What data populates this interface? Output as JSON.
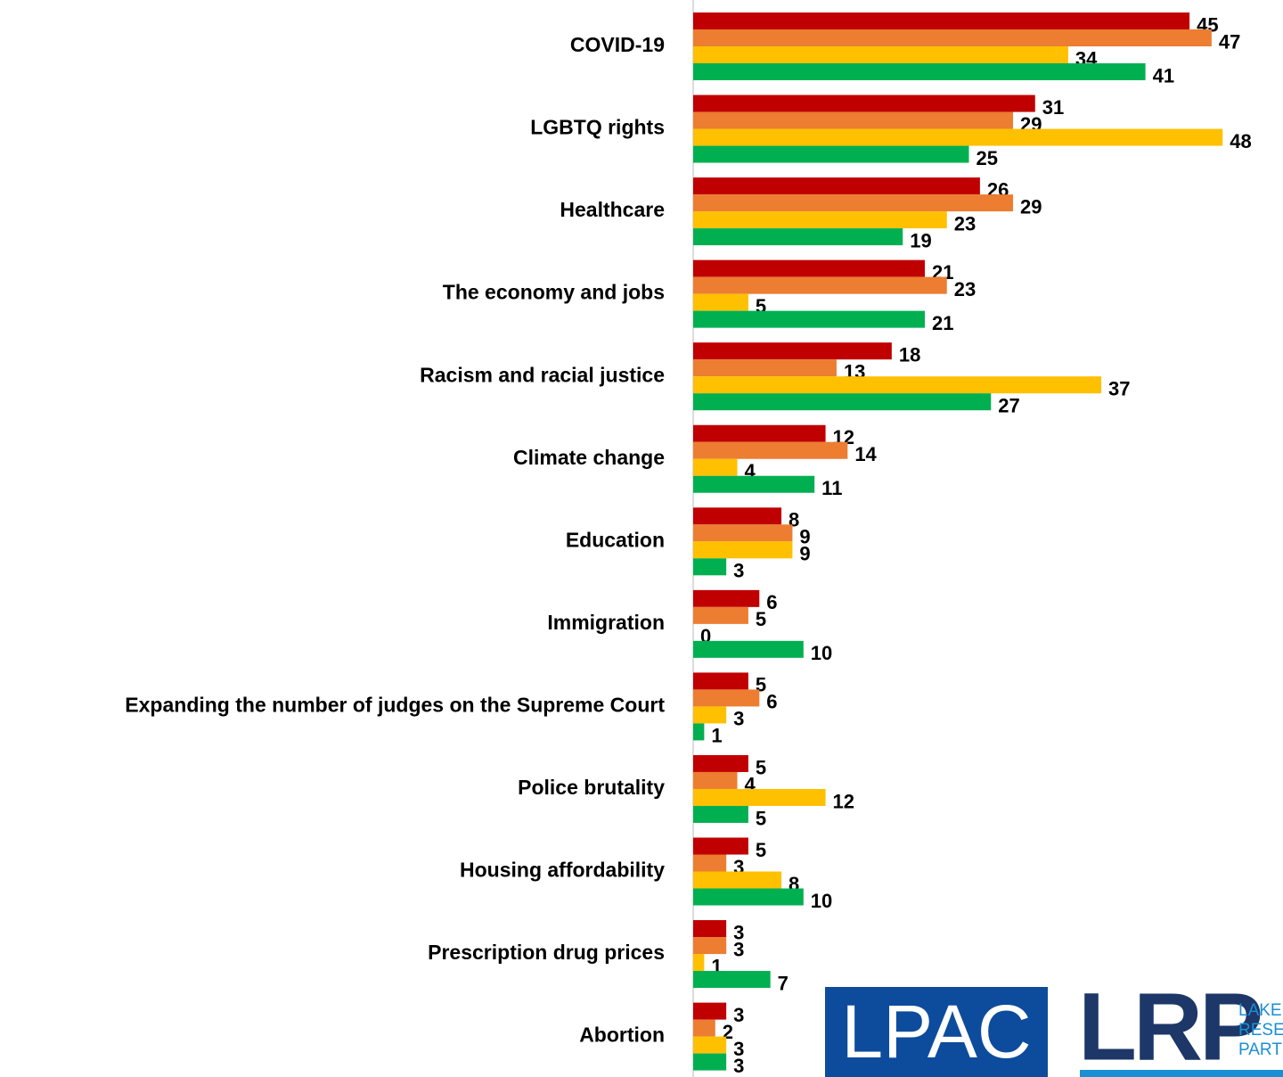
{
  "chart_data": {
    "type": "hbar",
    "categories": [
      "COVID-19",
      "LGBTQ rights",
      "Healthcare",
      "The economy and jobs",
      "Racism and racial justice",
      "Climate change",
      "Education",
      "Immigration",
      "Expanding the number of judges on the Supreme Court",
      "Police brutality",
      "Housing affordability",
      "Prescription drug prices",
      "Abortion"
    ],
    "series": [
      {
        "color": "#c00000",
        "values": [
          45,
          31,
          26,
          21,
          18,
          12,
          8,
          6,
          5,
          5,
          5,
          3,
          3
        ]
      },
      {
        "color": "#ed7d31",
        "values": [
          47,
          29,
          29,
          23,
          13,
          14,
          9,
          5,
          6,
          4,
          3,
          3,
          2
        ]
      },
      {
        "color": "#ffc000",
        "values": [
          34,
          48,
          23,
          5,
          37,
          4,
          9,
          0,
          3,
          12,
          8,
          1,
          3
        ]
      },
      {
        "color": "#00b050",
        "values": [
          41,
          25,
          19,
          21,
          27,
          11,
          3,
          10,
          1,
          5,
          10,
          7,
          3
        ]
      }
    ],
    "xlim": [
      0,
      50
    ]
  },
  "logos": {
    "lpac": "LPAC",
    "lrp": "LRP",
    "lrp_lines": [
      "LAKE",
      "RESE",
      "PART"
    ]
  }
}
